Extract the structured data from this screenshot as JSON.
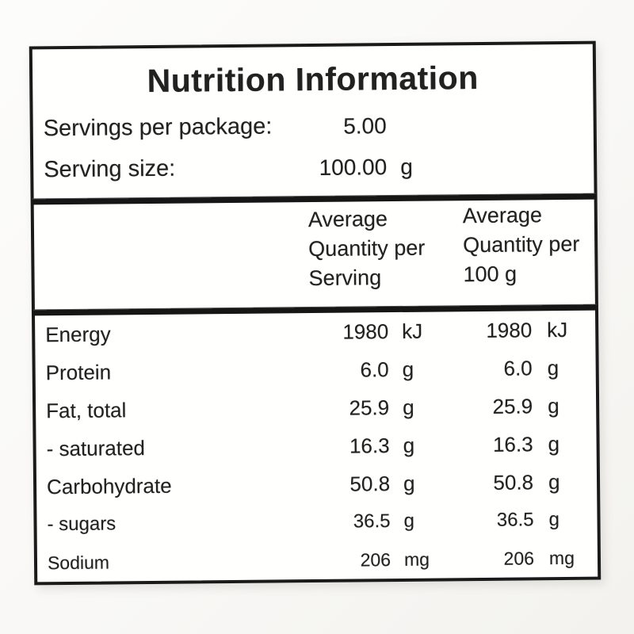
{
  "label": {
    "title": "Nutrition Information",
    "servings_per_package": {
      "label": "Servings per package:",
      "value": "5.00"
    },
    "serving_size": {
      "label": "Serving size:",
      "value": "100.00",
      "unit": "g"
    },
    "columns": {
      "per_serving": [
        "Average",
        "Quantity per",
        "Serving"
      ],
      "per_100g": [
        "Average",
        "Quantity per",
        "100 g"
      ]
    },
    "rows": [
      {
        "name": "Energy",
        "qty_serving": "1980",
        "unit_serving": "kJ",
        "qty_100g": "1980",
        "unit_100g": "kJ"
      },
      {
        "name": "Protein",
        "qty_serving": "6.0",
        "unit_serving": "g",
        "qty_100g": "6.0",
        "unit_100g": "g"
      },
      {
        "name": "Fat, total",
        "qty_serving": "25.9",
        "unit_serving": "g",
        "qty_100g": "25.9",
        "unit_100g": "g"
      },
      {
        "name": "- saturated",
        "qty_serving": "16.3",
        "unit_serving": "g",
        "qty_100g": "16.3",
        "unit_100g": "g"
      },
      {
        "name": "Carbohydrate",
        "qty_serving": "50.8",
        "unit_serving": "g",
        "qty_100g": "50.8",
        "unit_100g": "g"
      },
      {
        "name": "- sugars",
        "qty_serving": "36.5",
        "unit_serving": "g",
        "qty_100g": "36.5",
        "unit_100g": "g"
      },
      {
        "name": "Sodium",
        "qty_serving": "206",
        "unit_serving": "mg",
        "qty_100g": "206",
        "unit_100g": "mg"
      }
    ],
    "colors": {
      "ink": "#212121",
      "border": "#1a1a1a",
      "paper": "#fffffe",
      "page_background": "#f9f8f6"
    }
  }
}
